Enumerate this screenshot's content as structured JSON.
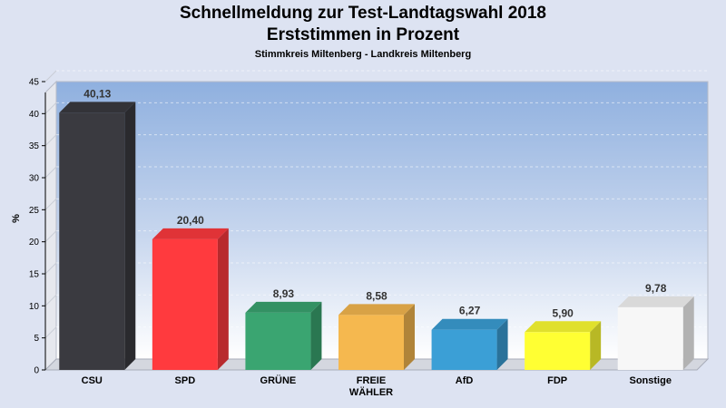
{
  "header": {
    "title_line1": "Schnellmeldung zur Test-Landtagswahl 2018",
    "title_line2": "Erststimmen in Prozent",
    "subtitle": "Stimmkreis Miltenberg - Landkreis Miltenberg"
  },
  "chart_data": {
    "type": "bar",
    "title": "Schnellmeldung zur Test-Landtagswahl 2018 Erststimmen in Prozent",
    "subtitle": "Stimmkreis Miltenberg - Landkreis Miltenberg",
    "xlabel": "",
    "ylabel": "%",
    "ylim": [
      0,
      45
    ],
    "yticks": [
      0,
      5,
      10,
      15,
      20,
      25,
      30,
      35,
      40,
      45
    ],
    "grid": true,
    "categories": [
      [
        "CSU"
      ],
      [
        "SPD"
      ],
      [
        "GRÜNE"
      ],
      [
        "FREIE",
        "WÄHLER"
      ],
      [
        "AfD"
      ],
      [
        "FDP"
      ],
      [
        "Sonstige"
      ]
    ],
    "values": [
      40.13,
      20.4,
      8.93,
      8.58,
      6.27,
      5.9,
      9.78
    ],
    "value_labels": [
      "40,13",
      "20,40",
      "8,93",
      "8,58",
      "6,27",
      "5,90",
      "9,78"
    ],
    "colors": [
      "#3a3a40",
      "#ff3a3e",
      "#3aa571",
      "#f5b84f",
      "#3b9fd6",
      "#ffff33",
      "#f7f7f7"
    ]
  }
}
